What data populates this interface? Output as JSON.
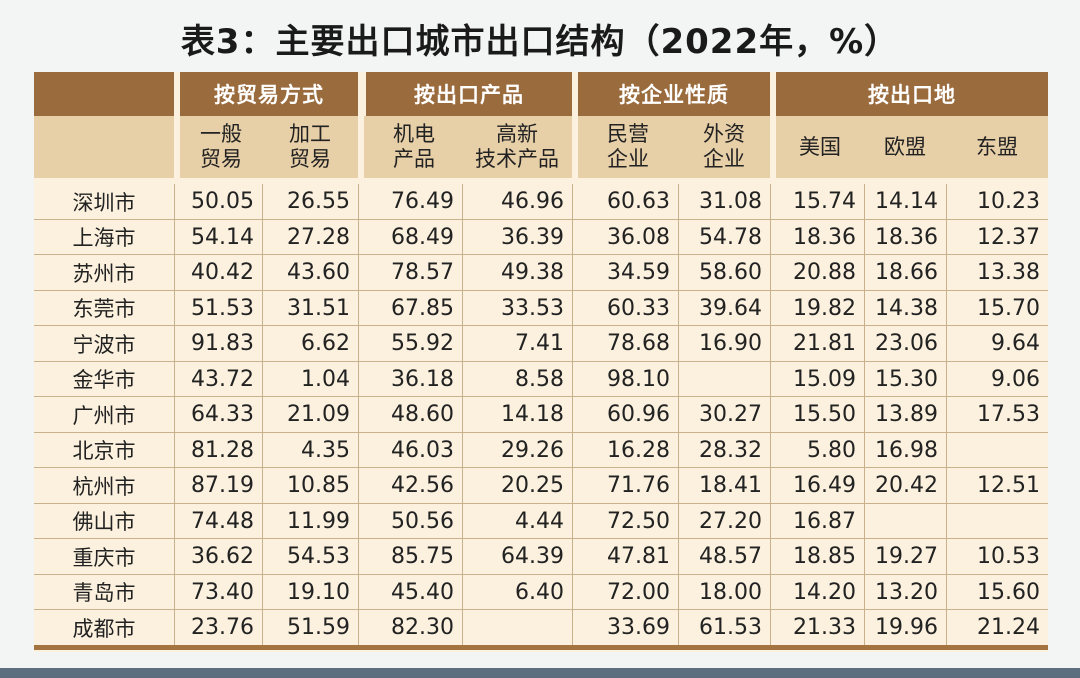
{
  "title": "表3：主要出口城市出口结构（2022年，%）",
  "groups": [
    "按贸易方式",
    "按出口产品",
    "按企业性质",
    "按出口地"
  ],
  "subheaders": [
    [
      "一般",
      "贸易"
    ],
    [
      "加工",
      "贸易"
    ],
    [
      "机电",
      "产品"
    ],
    [
      "高新",
      "技术产品"
    ],
    [
      "民营",
      "企业"
    ],
    [
      "外资",
      "企业"
    ],
    [
      "美国"
    ],
    [
      "欧盟"
    ],
    [
      "东盟"
    ]
  ],
  "rows": [
    {
      "city": "深圳市",
      "values": [
        "50.05",
        "26.55",
        "76.49",
        "46.96",
        "60.63",
        "31.08",
        "15.74",
        "14.14",
        "10.23"
      ]
    },
    {
      "city": "上海市",
      "values": [
        "54.14",
        "27.28",
        "68.49",
        "36.39",
        "36.08",
        "54.78",
        "18.36",
        "18.36",
        "12.37"
      ]
    },
    {
      "city": "苏州市",
      "values": [
        "40.42",
        "43.60",
        "78.57",
        "49.38",
        "34.59",
        "58.60",
        "20.88",
        "18.66",
        "13.38"
      ]
    },
    {
      "city": "东莞市",
      "values": [
        "51.53",
        "31.51",
        "67.85",
        "33.53",
        "60.33",
        "39.64",
        "19.82",
        "14.38",
        "15.70"
      ]
    },
    {
      "city": "宁波市",
      "values": [
        "91.83",
        "6.62",
        "55.92",
        "7.41",
        "78.68",
        "16.90",
        "21.81",
        "23.06",
        "9.64"
      ]
    },
    {
      "city": "金华市",
      "values": [
        "43.72",
        "1.04",
        "36.18",
        "8.58",
        "98.10",
        "",
        "15.09",
        "15.30",
        "9.06"
      ]
    },
    {
      "city": "广州市",
      "values": [
        "64.33",
        "21.09",
        "48.60",
        "14.18",
        "60.96",
        "30.27",
        "15.50",
        "13.89",
        "17.53"
      ]
    },
    {
      "city": "北京市",
      "values": [
        "81.28",
        "4.35",
        "46.03",
        "29.26",
        "16.28",
        "28.32",
        "5.80",
        "16.98",
        ""
      ]
    },
    {
      "city": "杭州市",
      "values": [
        "87.19",
        "10.85",
        "42.56",
        "20.25",
        "71.76",
        "18.41",
        "16.49",
        "20.42",
        "12.51"
      ]
    },
    {
      "city": "佛山市",
      "values": [
        "74.48",
        "11.99",
        "50.56",
        "4.44",
        "72.50",
        "27.20",
        "16.87",
        "",
        ""
      ]
    },
    {
      "city": "重庆市",
      "values": [
        "36.62",
        "54.53",
        "85.75",
        "64.39",
        "47.81",
        "48.57",
        "18.85",
        "19.27",
        "10.53"
      ]
    },
    {
      "city": "青岛市",
      "values": [
        "73.40",
        "19.10",
        "45.40",
        "6.40",
        "72.00",
        "18.00",
        "14.20",
        "13.20",
        "15.60"
      ]
    },
    {
      "city": "成都市",
      "values": [
        "23.76",
        "51.59",
        "82.30",
        "",
        "33.69",
        "61.53",
        "21.33",
        "19.96",
        "21.24"
      ]
    }
  ],
  "colors": {
    "header": "#9a6b3d",
    "subheader": "#e7cfa8",
    "body": "#fbf1de",
    "rule": "#c9b28b"
  }
}
